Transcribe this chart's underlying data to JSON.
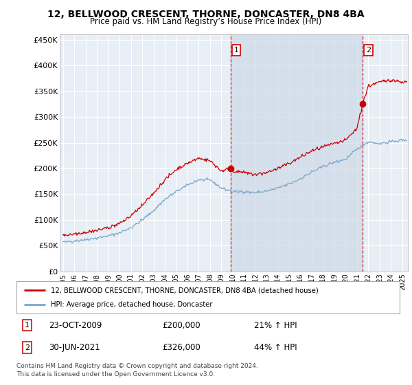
{
  "title": "12, BELLWOOD CRESCENT, THORNE, DONCASTER, DN8 4BA",
  "subtitle": "Price paid vs. HM Land Registry’s House Price Index (HPI)",
  "ylabel_ticks": [
    "£0",
    "£50K",
    "£100K",
    "£150K",
    "£200K",
    "£250K",
    "£300K",
    "£350K",
    "£400K",
    "£450K"
  ],
  "ytick_values": [
    0,
    50000,
    100000,
    150000,
    200000,
    250000,
    300000,
    350000,
    400000,
    450000
  ],
  "ylim": [
    0,
    460000
  ],
  "xlim_start": 1994.7,
  "xlim_end": 2025.5,
  "sale1_x": 2009.81,
  "sale1_y": 200000,
  "sale1_label": "1",
  "sale2_x": 2021.5,
  "sale2_y": 326000,
  "sale2_label": "2",
  "sale1_color": "#cc0000",
  "sale2_color": "#cc0000",
  "vline_color": "#cc0000",
  "hpi_line_color": "#7ba7c9",
  "price_line_color": "#cc0000",
  "bg_color": "#ffffff",
  "plot_bg_color": "#e8eef5",
  "plot_bg_left": "#dce5ee",
  "grid_color": "#ffffff",
  "highlight_color": "#d0dff0",
  "legend_house_label": "12, BELLWOOD CRESCENT, THORNE, DONCASTER, DN8 4BA (detached house)",
  "legend_hpi_label": "HPI: Average price, detached house, Doncaster",
  "annotation1_date": "23-OCT-2009",
  "annotation1_price": "£200,000",
  "annotation1_hpi": "21% ↑ HPI",
  "annotation2_date": "30-JUN-2021",
  "annotation2_price": "£326,000",
  "annotation2_hpi": "44% ↑ HPI",
  "footnote": "Contains HM Land Registry data © Crown copyright and database right 2024.\nThis data is licensed under the Open Government Licence v3.0.",
  "xtick_years": [
    1995,
    1996,
    1997,
    1998,
    1999,
    2000,
    2001,
    2002,
    2003,
    2004,
    2005,
    2006,
    2007,
    2008,
    2009,
    2010,
    2011,
    2012,
    2013,
    2014,
    2015,
    2016,
    2017,
    2018,
    2019,
    2020,
    2021,
    2022,
    2023,
    2024,
    2025
  ]
}
